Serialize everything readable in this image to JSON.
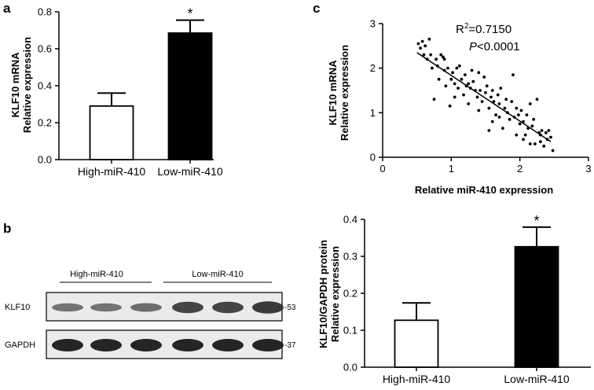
{
  "panel_labels": {
    "a": "a",
    "b": "b",
    "c": "c"
  },
  "chart_data": [
    {
      "panel": "a",
      "type": "bar",
      "categories": [
        "High-miR-410",
        "Low-miR-410"
      ],
      "values": [
        0.29,
        0.685
      ],
      "errors": [
        0.07,
        0.07
      ],
      "fills": [
        "#ffffff",
        "#000000"
      ],
      "significance": [
        "",
        "*"
      ],
      "ylabel": [
        "KLF10 mRNA",
        "Relative expression"
      ],
      "ylim": [
        0,
        0.8
      ],
      "yticks": [
        "0.0",
        "0.2",
        "0.4",
        "0.6",
        "0.8"
      ]
    },
    {
      "panel": "c",
      "type": "scatter",
      "xlabel": "Relative miR-410 expression",
      "ylabel": [
        "KLF10 mRNA",
        "Relative expression"
      ],
      "xlim": [
        0,
        3
      ],
      "ylim": [
        0,
        3
      ],
      "xticks": [
        "0",
        "1",
        "2",
        "3"
      ],
      "yticks": [
        "0",
        "1",
        "2",
        "3"
      ],
      "annotation": {
        "r2_prefix": "R",
        "r2_exp": "2",
        "r2_value": "=0.7150",
        "p_symbol": "P",
        "p_value": "<0.0001"
      },
      "fit": {
        "x0": 0.5,
        "y0": 2.35,
        "x1": 2.45,
        "y1": 0.35
      },
      "points": [
        [
          0.52,
          2.55
        ],
        [
          0.55,
          2.45
        ],
        [
          0.58,
          2.6
        ],
        [
          0.6,
          2.3
        ],
        [
          0.62,
          2.5
        ],
        [
          0.65,
          2.2
        ],
        [
          0.68,
          2.65
        ],
        [
          0.7,
          2.3
        ],
        [
          0.72,
          2.0
        ],
        [
          0.75,
          1.3
        ],
        [
          0.78,
          2.2
        ],
        [
          0.8,
          2.05
        ],
        [
          0.82,
          1.75
        ],
        [
          0.85,
          2.3
        ],
        [
          0.88,
          2.25
        ],
        [
          0.9,
          1.95
        ],
        [
          0.92,
          1.6
        ],
        [
          0.95,
          2.0
        ],
        [
          0.98,
          1.15
        ],
        [
          1.0,
          1.75
        ],
        [
          1.02,
          1.9
        ],
        [
          1.05,
          1.65
        ],
        [
          1.08,
          2.0
        ],
        [
          1.1,
          1.55
        ],
        [
          1.12,
          2.05
        ],
        [
          1.15,
          1.75
        ],
        [
          1.18,
          1.4
        ],
        [
          1.2,
          1.85
        ],
        [
          1.22,
          1.6
        ],
        [
          1.25,
          1.2
        ],
        [
          1.28,
          1.55
        ],
        [
          1.3,
          1.95
        ],
        [
          1.32,
          1.7
        ],
        [
          1.35,
          1.5
        ],
        [
          1.38,
          1.35
        ],
        [
          1.4,
          1.9
        ],
        [
          1.42,
          1.5
        ],
        [
          1.45,
          1.25
        ],
        [
          1.48,
          1.8
        ],
        [
          1.5,
          1.45
        ],
        [
          1.52,
          1.6
        ],
        [
          1.55,
          1.1
        ],
        [
          1.58,
          1.35
        ],
        [
          1.6,
          1.5
        ],
        [
          1.62,
          1.25
        ],
        [
          1.65,
          0.95
        ],
        [
          1.68,
          1.4
        ],
        [
          1.7,
          1.2
        ],
        [
          1.72,
          1.55
        ],
        [
          1.75,
          0.65
        ],
        [
          1.78,
          1.1
        ],
        [
          1.8,
          1.3
        ],
        [
          1.82,
          1.0
        ],
        [
          1.85,
          0.85
        ],
        [
          1.88,
          1.25
        ],
        [
          1.9,
          1.85
        ],
        [
          1.92,
          0.9
        ],
        [
          1.95,
          1.1
        ],
        [
          1.98,
          0.95
        ],
        [
          2.0,
          0.75
        ],
        [
          2.02,
          1.05
        ],
        [
          2.05,
          0.8
        ],
        [
          2.08,
          0.5
        ],
        [
          2.1,
          0.95
        ],
        [
          2.12,
          0.65
        ],
        [
          2.15,
          1.2
        ],
        [
          2.18,
          0.7
        ],
        [
          2.2,
          0.85
        ],
        [
          2.22,
          0.3
        ],
        [
          2.25,
          1.3
        ],
        [
          2.28,
          0.55
        ],
        [
          2.3,
          0.35
        ],
        [
          2.32,
          0.6
        ],
        [
          2.35,
          0.25
        ],
        [
          2.38,
          0.55
        ],
        [
          2.4,
          0.4
        ],
        [
          2.42,
          0.6
        ],
        [
          2.45,
          0.45
        ],
        [
          2.48,
          0.15
        ],
        [
          1.55,
          0.6
        ],
        [
          1.25,
          1.65
        ],
        [
          0.9,
          2.2
        ],
        [
          1.7,
          0.9
        ],
        [
          2.05,
          0.4
        ],
        [
          1.95,
          0.5
        ],
        [
          2.15,
          0.3
        ],
        [
          1.4,
          1.05
        ],
        [
          1.6,
          0.8
        ],
        [
          2.3,
          0.5
        ],
        [
          1.05,
          1.35
        ]
      ]
    },
    {
      "panel": "b",
      "type": "bar",
      "categories": [
        "High-miR-410",
        "Low-miR-410"
      ],
      "values": [
        0.127,
        0.326
      ],
      "errors": [
        0.047,
        0.053
      ],
      "fills": [
        "#ffffff",
        "#000000"
      ],
      "significance": [
        "",
        "*"
      ],
      "ylabel": [
        "KLF10/GAPDH protein",
        "Relative expression"
      ],
      "ylim": [
        0,
        0.4
      ],
      "yticks": [
        "0.0",
        "0.1",
        "0.2",
        "0.3",
        "0.4"
      ]
    }
  ],
  "western_blot": {
    "group_labels": [
      "High-miR-410",
      "Low-miR-410"
    ],
    "rows": [
      {
        "label": "KLF10",
        "marker": "-53",
        "band_color": "#2a2a2a",
        "intensity": [
          0.45,
          0.45,
          0.5,
          0.85,
          0.85,
          0.95
        ]
      },
      {
        "label": "GAPDH",
        "marker": "-37",
        "band_color": "#1a1a1a",
        "intensity": [
          1.0,
          1.0,
          1.0,
          1.0,
          1.0,
          1.0
        ]
      }
    ]
  }
}
